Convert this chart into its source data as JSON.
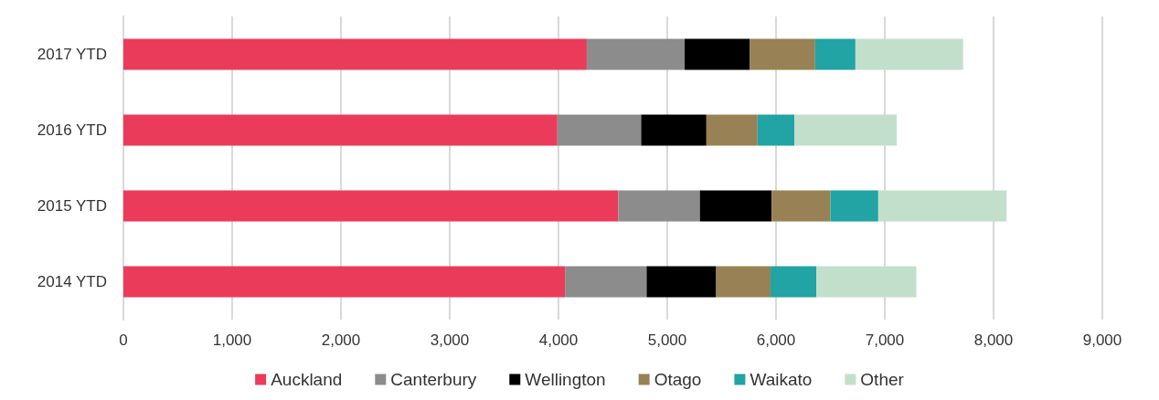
{
  "chart_data": {
    "type": "bar",
    "orientation": "horizontal",
    "stacked": true,
    "categories": [
      "2017 YTD",
      "2016 YTD",
      "2015 YTD",
      "2014 YTD"
    ],
    "series": [
      {
        "name": "Auckland",
        "color": "#eb3b5a",
        "values": [
          4260,
          3990,
          4550,
          4060
        ]
      },
      {
        "name": "Canterbury",
        "color": "#8c8c8c",
        "values": [
          900,
          770,
          750,
          750
        ]
      },
      {
        "name": "Wellington",
        "color": "#000000",
        "values": [
          600,
          600,
          660,
          640
        ]
      },
      {
        "name": "Otago",
        "color": "#988154",
        "values": [
          600,
          470,
          540,
          500
        ]
      },
      {
        "name": "Waikato",
        "color": "#22a3a4",
        "values": [
          370,
          340,
          440,
          420
        ]
      },
      {
        "name": "Other",
        "color": "#c2dfcc",
        "values": [
          990,
          940,
          1180,
          920
        ]
      }
    ],
    "xlim": [
      0,
      9000
    ],
    "xticks": [
      0,
      {
        "value": 1000,
        "label": "1,000"
      },
      {
        "value": 2000,
        "label": "2,000"
      },
      {
        "value": 3000,
        "label": "3,000"
      },
      {
        "value": 4000,
        "label": "4,000"
      },
      {
        "value": 5000,
        "label": "5,000"
      },
      {
        "value": 6000,
        "label": "6,000"
      },
      {
        "value": 7000,
        "label": "7,000"
      },
      {
        "value": 8000,
        "label": "8,000"
      },
      {
        "value": 9000,
        "label": "9,000"
      }
    ],
    "grid": "x",
    "legend": "bottom"
  }
}
